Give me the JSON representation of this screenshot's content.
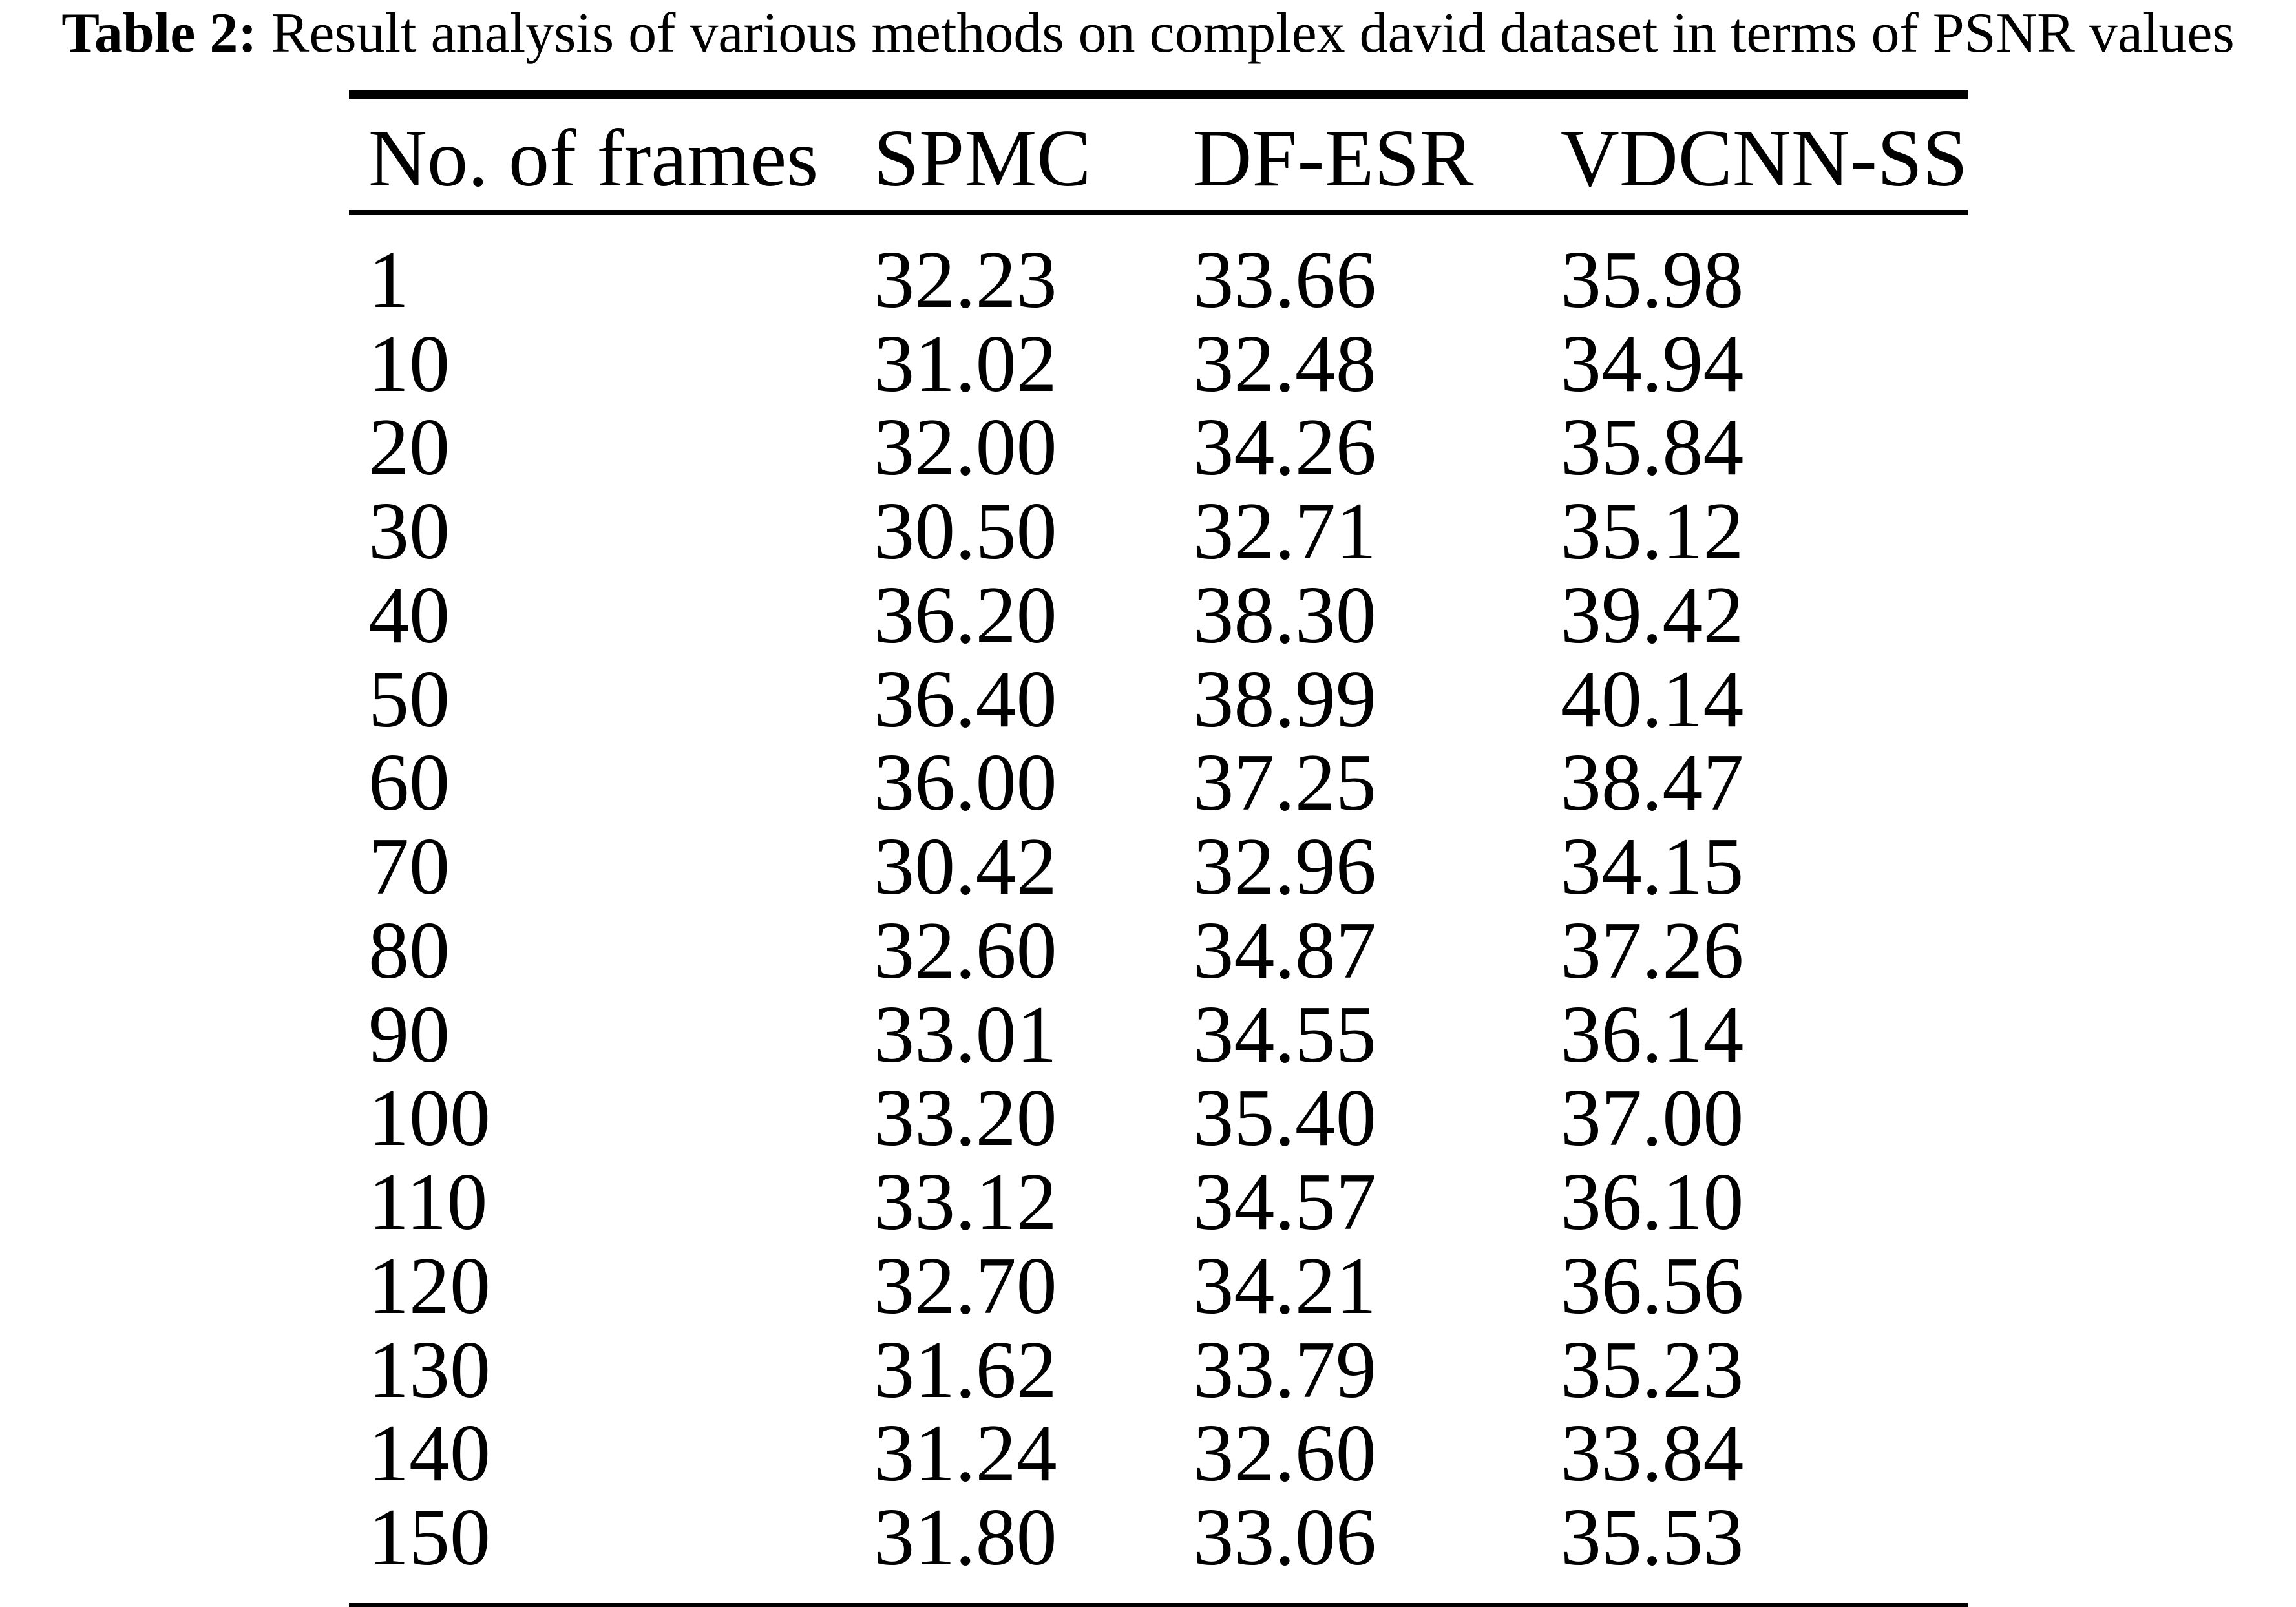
{
  "title": {
    "label": "Table 2:",
    "text": "Result analysis of various methods on complex david dataset in terms of PSNR values"
  },
  "chart_data": {
    "type": "table",
    "title": "Result analysis of various methods on complex david dataset in terms of PSNR values",
    "columns": [
      "No. of frames",
      "SPMC",
      "DF-ESR",
      "VDCNN-SS"
    ],
    "rows": [
      [
        "1",
        "32.23",
        "33.66",
        "35.98"
      ],
      [
        "10",
        "31.02",
        "32.48",
        "34.94"
      ],
      [
        "20",
        "32.00",
        "34.26",
        "35.84"
      ],
      [
        "30",
        "30.50",
        "32.71",
        "35.12"
      ],
      [
        "40",
        "36.20",
        "38.30",
        "39.42"
      ],
      [
        "50",
        "36.40",
        "38.99",
        "40.14"
      ],
      [
        "60",
        "36.00",
        "37.25",
        "38.47"
      ],
      [
        "70",
        "30.42",
        "32.96",
        "34.15"
      ],
      [
        "80",
        "32.60",
        "34.87",
        "37.26"
      ],
      [
        "90",
        "33.01",
        "34.55",
        "36.14"
      ],
      [
        "100",
        "33.20",
        "35.40",
        "37.00"
      ],
      [
        "110",
        "33.12",
        "34.57",
        "36.10"
      ],
      [
        "120",
        "32.70",
        "34.21",
        "36.56"
      ],
      [
        "130",
        "31.62",
        "33.79",
        "35.23"
      ],
      [
        "140",
        "31.24",
        "32.60",
        "33.84"
      ],
      [
        "150",
        "31.80",
        "33.06",
        "35.53"
      ]
    ]
  }
}
